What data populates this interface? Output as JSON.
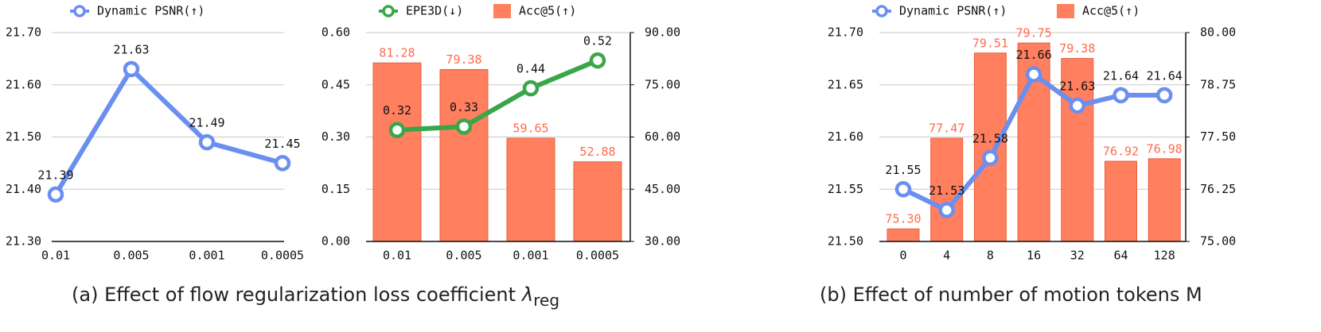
{
  "chart_data": [
    {
      "type": "line",
      "categories": [
        "0.01",
        "0.005",
        "0.001",
        "0.0005"
      ],
      "series": [
        {
          "name": "Dynamic PSNR(↑)",
          "color": "#6b8ff0",
          "type": "line",
          "values": [
            21.39,
            21.63,
            21.49,
            21.45
          ]
        }
      ],
      "ylim": [
        21.3,
        21.7
      ],
      "yticks": [
        {
          "value": 21.3,
          "label": "21.30"
        },
        {
          "value": 21.4,
          "label": "21.40"
        },
        {
          "value": 21.5,
          "label": "21.50"
        },
        {
          "value": 21.6,
          "label": "21.60"
        },
        {
          "value": 21.7,
          "label": "21.70"
        }
      ],
      "grid": true
    },
    {
      "type": "combo",
      "categories": [
        "0.01",
        "0.005",
        "0.001",
        "0.0005"
      ],
      "series": [
        {
          "name": "EPE3D(↓)",
          "color": "#3aa64a",
          "type": "line",
          "values": [
            0.32,
            0.33,
            0.44,
            0.52
          ]
        },
        {
          "name": "Acc@5(↑)",
          "color": "#ff7f5e",
          "type": "bar",
          "axis": "y2",
          "values": [
            81.28,
            79.38,
            59.65,
            52.88
          ]
        }
      ],
      "ylim": [
        0,
        0.6
      ],
      "yticks": [
        {
          "value": 0,
          "label": "0.00"
        },
        {
          "value": 0.15,
          "label": "0.15"
        },
        {
          "value": 0.3,
          "label": "0.30"
        },
        {
          "value": 0.45,
          "label": "0.45"
        },
        {
          "value": 0.6,
          "label": "0.60"
        }
      ],
      "y2lim": [
        30,
        90
      ],
      "y2ticks": [
        {
          "value": 30,
          "label": "30.00"
        },
        {
          "value": 45,
          "label": "45.00"
        },
        {
          "value": 60,
          "label": "60.00"
        },
        {
          "value": 75,
          "label": "75.00"
        },
        {
          "value": 90,
          "label": "90.00"
        }
      ],
      "grid": true
    },
    {
      "type": "combo",
      "categories": [
        "0",
        "4",
        "8",
        "16",
        "32",
        "64",
        "128"
      ],
      "series": [
        {
          "name": "Dynamic PSNR(↑)",
          "color": "#6b8ff0",
          "type": "line",
          "values": [
            21.55,
            21.53,
            21.58,
            21.66,
            21.63,
            21.64,
            21.64
          ]
        },
        {
          "name": "Acc@5(↑)",
          "color": "#ff7f5e",
          "type": "bar",
          "axis": "y2",
          "values": [
            75.3,
            77.47,
            79.51,
            79.75,
            79.38,
            76.92,
            76.98
          ],
          "value_labels": [
            "75.30",
            "77.47",
            "79.51",
            "79.75",
            "79.38",
            "76.92",
            "76.98"
          ]
        }
      ],
      "ylim": [
        21.5,
        21.7
      ],
      "yticks": [
        {
          "value": 21.5,
          "label": "21.50"
        },
        {
          "value": 21.55,
          "label": "21.55"
        },
        {
          "value": 21.6,
          "label": "21.60"
        },
        {
          "value": 21.65,
          "label": "21.65"
        },
        {
          "value": 21.7,
          "label": "21.70"
        }
      ],
      "y2lim": [
        75,
        80
      ],
      "y2ticks": [
        {
          "value": 75,
          "label": "75.00"
        },
        {
          "value": 76.25,
          "label": "76.25"
        },
        {
          "value": 77.5,
          "label": "77.50"
        },
        {
          "value": 78.75,
          "label": "78.75"
        },
        {
          "value": 80,
          "label": "80.00"
        }
      ],
      "grid": true
    }
  ],
  "captions": [
    {
      "text": "(a) Effect of flow regularization loss coefficient",
      "symbol": "λ",
      "subscript": "reg"
    },
    {
      "text": "(b) Effect of number of motion tokens M"
    }
  ]
}
